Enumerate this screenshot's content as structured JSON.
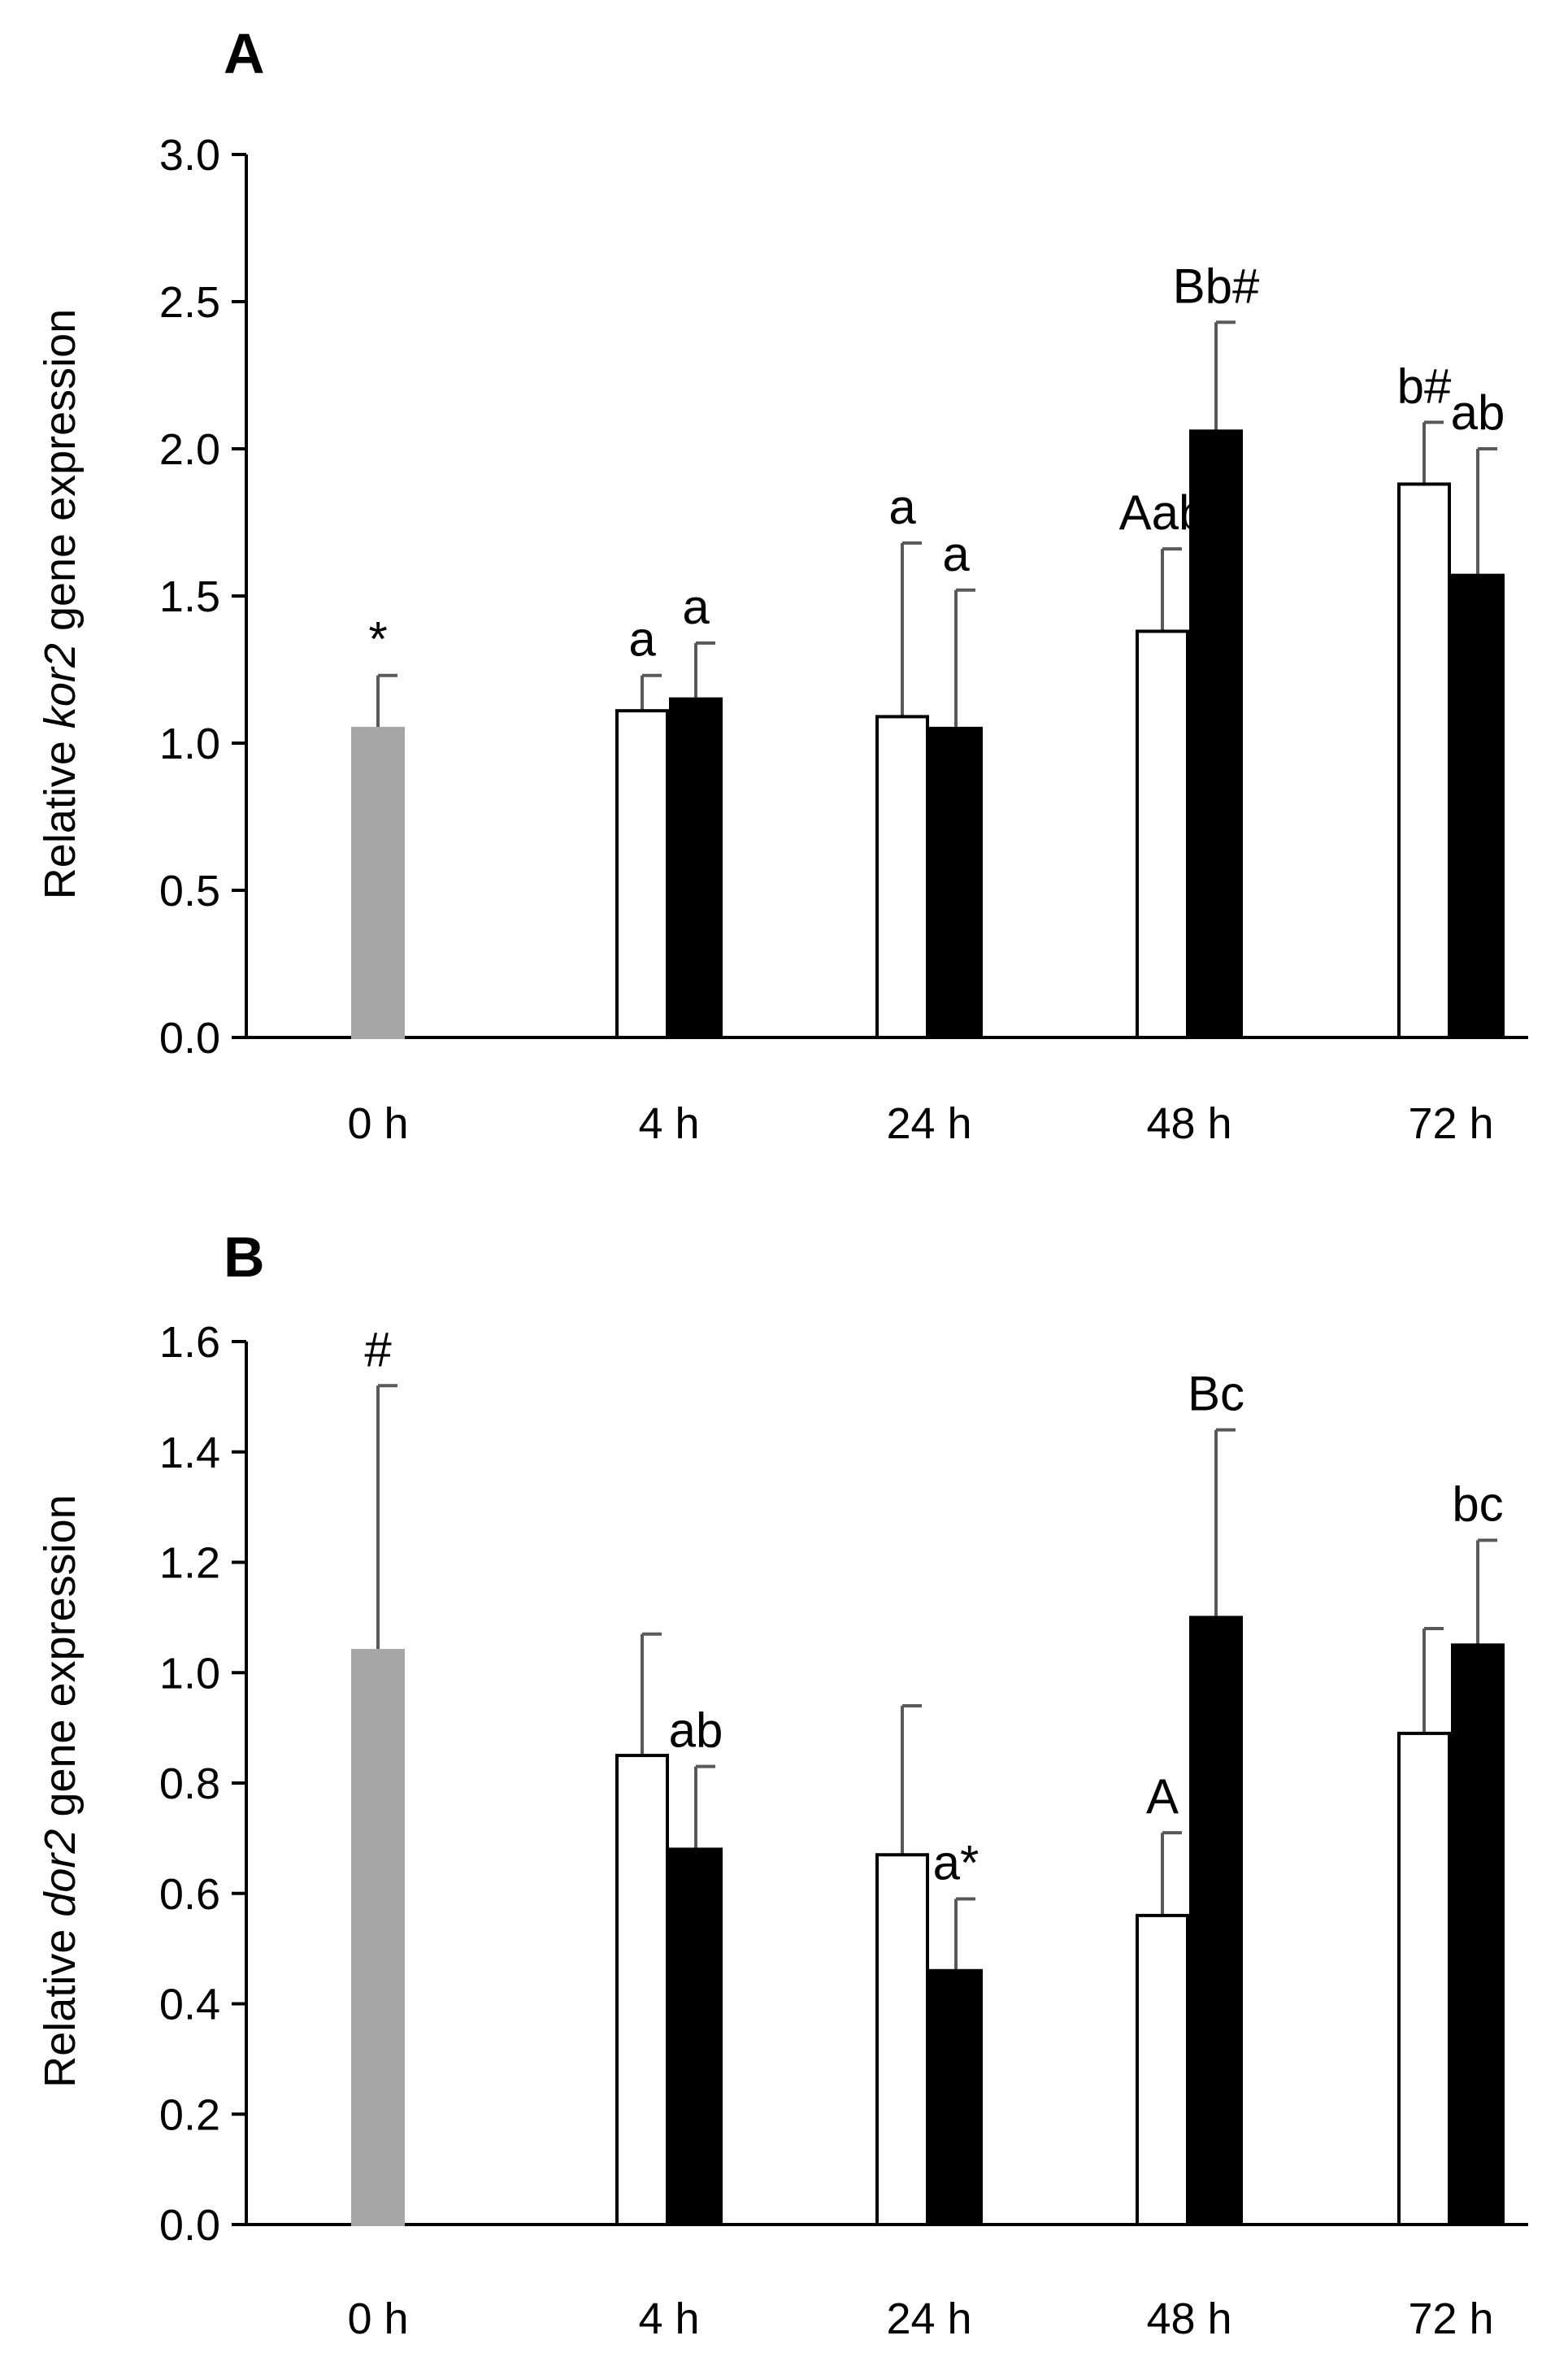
{
  "colors": {
    "control": "#a6a6a6",
    "open_bar": "#ffffff",
    "filled_bar": "#000000",
    "error_bar": "#595959",
    "axis": "#000000"
  },
  "chart_data": [
    {
      "type": "bar",
      "panel_label": "A",
      "ylabel_prefix": "Relative ",
      "ylabel_gene": "kor2",
      "ylabel_suffix": " gene expression",
      "ylim": [
        0,
        3.0
      ],
      "yticks": [
        "0.0",
        "0.5",
        "1.0",
        "1.5",
        "2.0",
        "2.5",
        "3.0"
      ],
      "categories": [
        "0 h",
        "4 h",
        "24 h",
        "48 h",
        "72 h"
      ],
      "series": [
        {
          "name": "control",
          "style": "gray",
          "values": [
            1.05,
            null,
            null,
            null,
            null
          ],
          "errors": [
            0.18,
            null,
            null,
            null,
            null
          ],
          "labels": [
            "*",
            null,
            null,
            null,
            null
          ]
        },
        {
          "name": "open",
          "style": "open",
          "values": [
            null,
            1.11,
            1.09,
            1.38,
            1.88
          ],
          "errors": [
            null,
            0.12,
            0.59,
            0.28,
            0.21
          ],
          "labels": [
            null,
            "a",
            "a",
            "Aab",
            "b#"
          ]
        },
        {
          "name": "filled",
          "style": "filled",
          "values": [
            null,
            1.15,
            1.05,
            2.06,
            1.57
          ],
          "errors": [
            null,
            0.19,
            0.47,
            0.37,
            0.43
          ],
          "labels": [
            null,
            "a",
            "a",
            "Bb#",
            "ab"
          ]
        }
      ]
    },
    {
      "type": "bar",
      "panel_label": "B",
      "ylabel_prefix": "Relative ",
      "ylabel_gene": "dor2",
      "ylabel_suffix": " gene expression",
      "ylim": [
        0,
        1.6
      ],
      "yticks": [
        "0.0",
        "0.2",
        "0.4",
        "0.6",
        "0.8",
        "1.0",
        "1.2",
        "1.4",
        "1.6"
      ],
      "categories": [
        "0 h",
        "4 h",
        "24 h",
        "48 h",
        "72 h"
      ],
      "series": [
        {
          "name": "control",
          "style": "gray",
          "values": [
            1.04,
            null,
            null,
            null,
            null
          ],
          "errors": [
            0.48,
            null,
            null,
            null,
            null
          ],
          "labels": [
            "#",
            null,
            null,
            null,
            null
          ]
        },
        {
          "name": "open",
          "style": "open",
          "values": [
            null,
            0.85,
            0.67,
            0.56,
            0.89
          ],
          "errors": [
            null,
            0.22,
            0.27,
            0.15,
            0.19
          ],
          "labels": [
            null,
            null,
            null,
            "A",
            null
          ]
        },
        {
          "name": "filled",
          "style": "filled",
          "values": [
            null,
            0.68,
            0.46,
            1.1,
            1.05
          ],
          "errors": [
            null,
            0.15,
            0.13,
            0.34,
            0.19
          ],
          "labels": [
            null,
            "ab",
            "a*",
            "Bc",
            "bc"
          ]
        }
      ]
    }
  ]
}
